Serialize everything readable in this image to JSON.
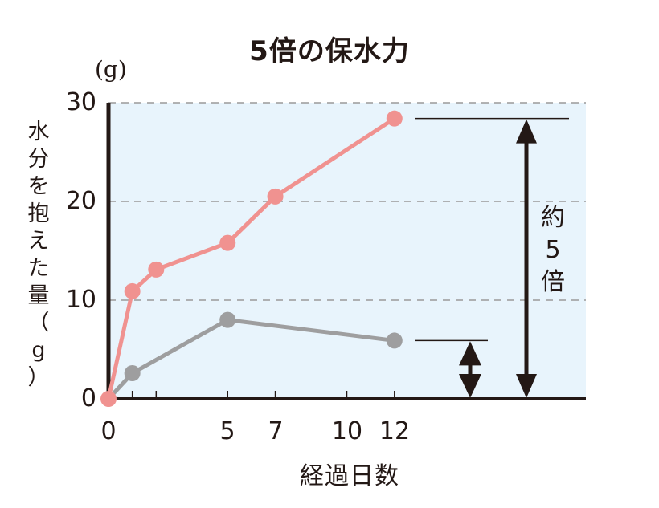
{
  "chart_data": {
    "type": "line",
    "title": "5倍の保水力",
    "xlabel": "経過日数",
    "ylabel": "水分を抱えた量（g）",
    "y_unit_label": "(g)",
    "xlim": [
      0,
      12
    ],
    "ylim": [
      0,
      30
    ],
    "x_ticks": [
      0,
      1,
      2,
      5,
      7,
      10,
      12
    ],
    "x_tick_labels": [
      "0",
      "",
      "",
      "5",
      "7",
      "10",
      "12"
    ],
    "y_ticks": [
      0,
      10,
      20,
      30
    ],
    "y_tick_labels": [
      "0",
      "10",
      "20",
      "30"
    ],
    "grid": "horizontal dashed at 10, 20, 30",
    "background": "#e8f4fc",
    "series": [
      {
        "name": "pink series (high water retention)",
        "color": "#f09290",
        "x": [
          0,
          1,
          2,
          5,
          7,
          12
        ],
        "values": [
          0,
          10.9,
          13.1,
          15.8,
          20.5,
          28.4
        ]
      },
      {
        "name": "gray series (comparison)",
        "color": "#9e9e9f",
        "x": [
          0,
          1,
          5,
          12
        ],
        "values": [
          0,
          2.6,
          8.0,
          5.9
        ]
      }
    ],
    "annotations": [
      {
        "type": "double-arrow",
        "from": 0,
        "to": 28.4,
        "label": "約5倍"
      },
      {
        "type": "double-arrow",
        "from": 0,
        "to": 5.9,
        "label": ""
      }
    ]
  },
  "labels": {
    "title": "5倍の保水力",
    "unit_top": "(g)",
    "ylabel_chars": [
      "水",
      "分",
      "を",
      "抱",
      "え",
      "た",
      "量",
      "（",
      "g",
      "）"
    ],
    "xlabel": "経過日数",
    "ratio_chars": [
      "約",
      "5",
      "倍"
    ],
    "yticks": [
      "30",
      "20",
      "10",
      "0"
    ],
    "xticks": [
      "0",
      "5",
      "7",
      "10",
      "12"
    ]
  }
}
